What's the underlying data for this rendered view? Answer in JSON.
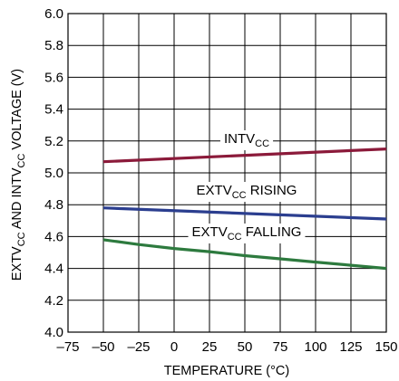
{
  "chart_data": {
    "type": "line",
    "title": "",
    "xlabel": "TEMPERATURE (°C)",
    "ylabel": {
      "parts": [
        {
          "text": "EXTV",
          "sub": false
        },
        {
          "text": "CC",
          "sub": true
        },
        {
          "text": " AND INTV",
          "sub": false
        },
        {
          "text": "CC",
          "sub": true
        },
        {
          "text": " VOLTAGE (V)",
          "sub": false
        }
      ]
    },
    "xlim": [
      -75,
      150
    ],
    "ylim": [
      4.0,
      6.0
    ],
    "x_ticks": [
      -75,
      -50,
      -25,
      0,
      25,
      50,
      75,
      100,
      125,
      150
    ],
    "x_tick_labels": [
      "–75",
      "–50",
      "–25",
      "0",
      "25",
      "50",
      "75",
      "100",
      "125",
      "150"
    ],
    "y_ticks": [
      4.0,
      4.2,
      4.4,
      4.6,
      4.8,
      5.0,
      5.2,
      5.4,
      5.6,
      5.8,
      6.0
    ],
    "y_tick_labels": [
      "4.0",
      "4.2",
      "4.4",
      "4.6",
      "4.8",
      "5.0",
      "5.2",
      "5.4",
      "5.6",
      "5.8",
      "6.0"
    ],
    "grid": true,
    "series": [
      {
        "key": "intvcc",
        "name": "INTVCC",
        "label_parts": [
          {
            "text": "INTV",
            "sub": false
          },
          {
            "text": "CC",
            "sub": true
          }
        ],
        "color": "#8b1a3a",
        "x": [
          -50,
          150
        ],
        "y": [
          5.07,
          5.15
        ]
      },
      {
        "key": "extvcc-rising",
        "name": "EXTVCC RISING",
        "label_parts": [
          {
            "text": "EXTV",
            "sub": false
          },
          {
            "text": "CC",
            "sub": true
          },
          {
            "text": " RISING",
            "sub": false
          }
        ],
        "color": "#2b3e8f",
        "x": [
          -50,
          150
        ],
        "y": [
          4.78,
          4.71
        ]
      },
      {
        "key": "extvcc-falling",
        "name": "EXTVCC FALLING",
        "label_parts": [
          {
            "text": "EXTV",
            "sub": false
          },
          {
            "text": "CC",
            "sub": true
          },
          {
            "text": " FALLING",
            "sub": false
          }
        ],
        "color": "#2d7a3e",
        "x": [
          -50,
          -25,
          0,
          25,
          50,
          75,
          100,
          125,
          150
        ],
        "y": [
          4.58,
          4.55,
          4.525,
          4.505,
          4.48,
          4.46,
          4.44,
          4.42,
          4.4
        ]
      }
    ]
  }
}
